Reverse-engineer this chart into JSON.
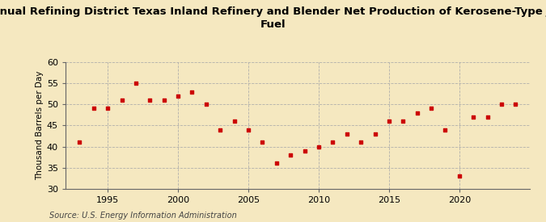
{
  "title": "Annual Refining District Texas Inland Refinery and Blender Net Production of Kerosene-Type Jet\nFuel",
  "ylabel": "Thousand Barrels per Day",
  "source": "Source: U.S. Energy Information Administration",
  "background_color": "#f5e8c0",
  "plot_bg_color": "#f5e8c0",
  "marker_color": "#cc0000",
  "years": [
    1993,
    1994,
    1995,
    1996,
    1997,
    1998,
    1999,
    2000,
    2001,
    2002,
    2003,
    2004,
    2005,
    2006,
    2007,
    2008,
    2009,
    2010,
    2011,
    2012,
    2013,
    2014,
    2015,
    2016,
    2017,
    2018,
    2019,
    2020,
    2021,
    2022,
    2023,
    2024
  ],
  "values": [
    41,
    49,
    49,
    51,
    55,
    51,
    51,
    52,
    53,
    50,
    44,
    46,
    44,
    41,
    36,
    38,
    39,
    40,
    41,
    43,
    41,
    43,
    46,
    46,
    48,
    49,
    44,
    33,
    47,
    47,
    50,
    50
  ],
  "ylim": [
    30,
    60
  ],
  "yticks": [
    30,
    35,
    40,
    45,
    50,
    55,
    60
  ],
  "xlim": [
    1992,
    2025
  ],
  "xticks": [
    1995,
    2000,
    2005,
    2010,
    2015,
    2020
  ],
  "title_fontsize": 9.5,
  "tick_fontsize": 8,
  "ylabel_fontsize": 7.5,
  "source_fontsize": 7
}
